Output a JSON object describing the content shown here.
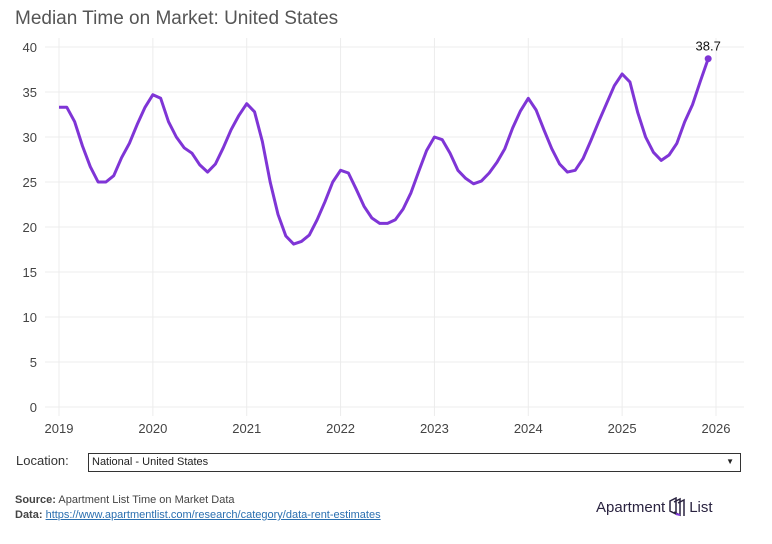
{
  "chart_data": {
    "type": "line",
    "title": "Median Time on Market: United States",
    "xlabel": "",
    "ylabel": "",
    "ylim": [
      0,
      40
    ],
    "yticks": [
      0,
      5,
      10,
      15,
      20,
      25,
      30,
      35,
      40
    ],
    "xticks": [
      "2019",
      "2020",
      "2021",
      "2022",
      "2023",
      "2024",
      "2025",
      "2026"
    ],
    "xlim": [
      2019,
      2026
    ],
    "grid": true,
    "color": "#7f35d6",
    "series": [
      {
        "name": "National - United States",
        "start": "2019-01",
        "frequency": "monthly",
        "values": [
          33.3,
          33.3,
          31.7,
          29.0,
          26.7,
          25.0,
          25.0,
          25.7,
          27.7,
          29.3,
          31.4,
          33.3,
          34.7,
          34.3,
          31.7,
          30.0,
          28.8,
          28.2,
          26.9,
          26.1,
          27.0,
          28.8,
          30.8,
          32.4,
          33.7,
          32.8,
          29.5,
          25.0,
          21.4,
          19.0,
          18.1,
          18.4,
          19.1,
          20.8,
          22.8,
          25.0,
          26.3,
          26.0,
          24.2,
          22.3,
          21.0,
          20.4,
          20.4,
          20.8,
          22.0,
          23.8,
          26.2,
          28.5,
          30.0,
          29.7,
          28.2,
          26.3,
          25.4,
          24.8,
          25.1,
          26.0,
          27.2,
          28.7,
          31.0,
          32.9,
          34.3,
          33.0,
          30.8,
          28.7,
          27.0,
          26.1,
          26.3,
          27.6,
          29.6,
          31.7,
          33.7,
          35.7,
          37.0,
          36.1,
          32.7,
          30.0,
          28.3,
          27.4,
          28.0,
          29.3,
          31.7,
          33.6,
          36.2,
          38.7
        ]
      }
    ],
    "annotation": "38.7"
  },
  "controls": {
    "location_label": "Location:",
    "location_value": "National - United States",
    "arrow": "▼"
  },
  "footer": {
    "source_label": "Source:",
    "source_text": "Apartment List Time on Market Data",
    "data_label": "Data:",
    "data_link": "https://www.apartmentlist.com/research/category/data-rent-estimates"
  },
  "logo": {
    "left": "Apartment",
    "right": "List"
  }
}
